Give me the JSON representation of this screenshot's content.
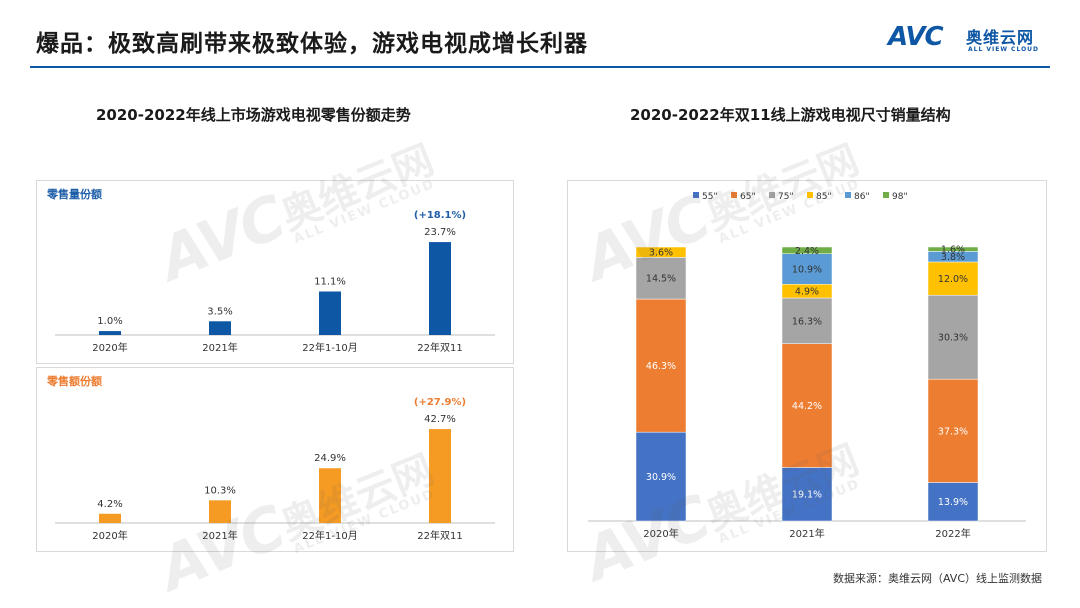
{
  "header": {
    "title": "爆品：极致高刷带来极致体验，游戏电视成增长利器",
    "logo_mark": "AVC",
    "logo_cn": "奥维云网",
    "logo_en": "ALL VIEW CLOUD"
  },
  "watermark": {
    "mark": "AVC",
    "cn": "奥维云网",
    "en": "ALL VIEW CLOUD"
  },
  "left_chart_title": "2020-2022年线上市场游戏电视零售份额走势",
  "right_chart_title": "2020-2022年双11线上游戏电视尺寸销量结构",
  "source": "数据来源：奥维云网（AVC）线上监测数据",
  "colors": {
    "blue_bar": "#0e57a5",
    "orange_bar": "#f59a23",
    "panel_label_blue": "#1f5fa8",
    "panel_label_orange": "#ed7d31",
    "s55": "#4472c4",
    "s65": "#ed7d31",
    "s75": "#a5a5a5",
    "s85": "#ffc000",
    "s86": "#5b9bd5",
    "s98": "#70ad47"
  },
  "chart_data": [
    {
      "type": "bar",
      "panel_label": "零售量份额",
      "categories": [
        "2020年",
        "2021年",
        "22年1-10月",
        "22年双11"
      ],
      "values": [
        1.0,
        3.5,
        11.1,
        23.7
      ],
      "value_labels": [
        "1.0%",
        "3.5%",
        "11.1%",
        "23.7%"
      ],
      "annotation": "(+18.1%)",
      "ylim": [
        0,
        25
      ],
      "grid": false
    },
    {
      "type": "bar",
      "panel_label": "零售额份额",
      "categories": [
        "2020年",
        "2021年",
        "22年1-10月",
        "22年双11"
      ],
      "values": [
        4.2,
        10.3,
        24.9,
        42.7
      ],
      "value_labels": [
        "4.2%",
        "10.3%",
        "24.9%",
        "42.7%"
      ],
      "annotation": "(+27.9%)",
      "ylim": [
        0,
        45
      ],
      "grid": false
    },
    {
      "type": "bar",
      "stacked": true,
      "categories": [
        "2020年",
        "2021年",
        "2022年"
      ],
      "legend_position": "top",
      "series": [
        {
          "name": "55\"",
          "values": [
            30.9,
            19.1,
            13.9
          ],
          "labels": [
            "30.9%",
            "19.1%",
            "13.9%"
          ]
        },
        {
          "name": "65\"",
          "values": [
            46.3,
            44.2,
            37.3
          ],
          "labels": [
            "46.3%",
            "44.2%",
            "37.3%"
          ]
        },
        {
          "name": "75\"",
          "values": [
            14.5,
            16.3,
            30.3
          ],
          "labels": [
            "14.5%",
            "16.3%",
            "30.3%"
          ]
        },
        {
          "name": "85\"",
          "values": [
            3.6,
            4.9,
            12.0
          ],
          "labels": [
            "3.6%",
            "4.9%",
            "12.0%"
          ]
        },
        {
          "name": "86\"",
          "values": [
            0,
            10.9,
            3.8
          ],
          "labels": [
            "",
            "10.9%",
            "3.8%"
          ]
        },
        {
          "name": "98\"",
          "values": [
            0,
            2.4,
            1.6
          ],
          "labels": [
            "",
            "2.4%",
            "1.6%"
          ]
        }
      ],
      "ylim": [
        0,
        100
      ],
      "grid": false
    }
  ]
}
